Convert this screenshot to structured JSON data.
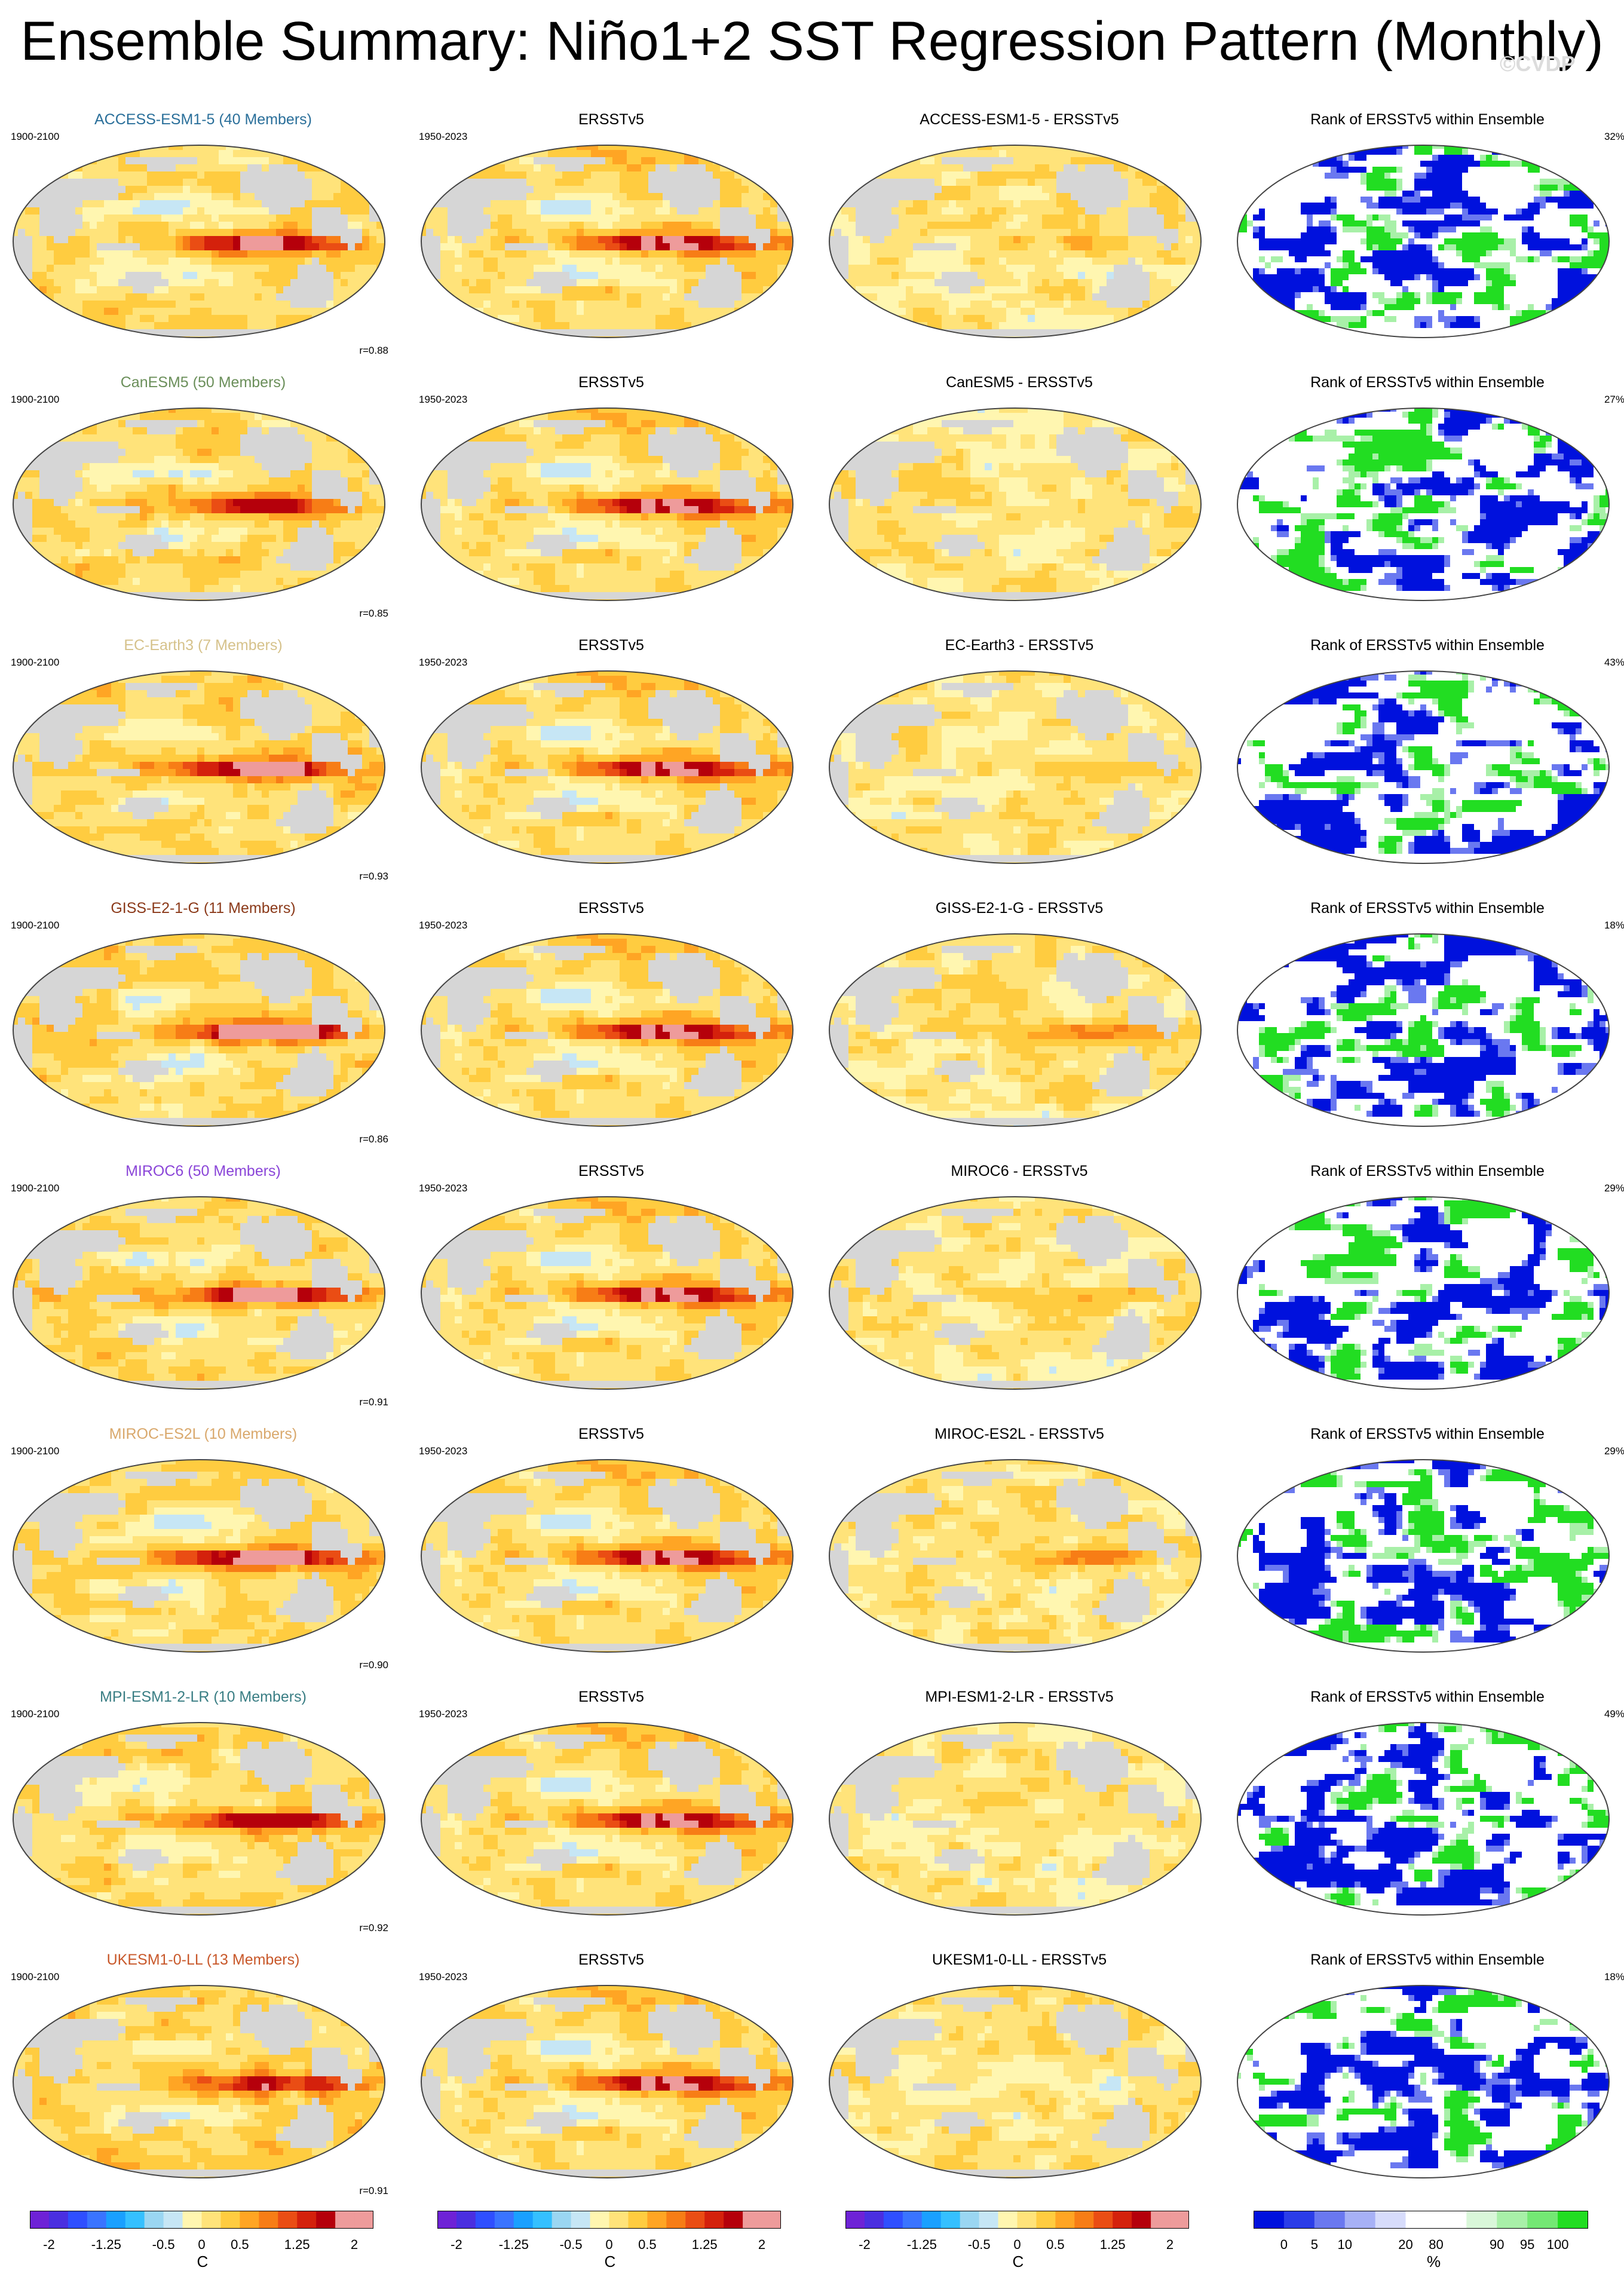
{
  "title": "Ensemble Summary: Niño1+2 SST Regression Pattern (Monthly)",
  "watermark": "©CVDP",
  "chart_data": {
    "type": "heatmap",
    "description_layout": "8 rows x 4 columns of global map panels",
    "colors": {
      "title_model_colors": {
        "ACCESS-ESM1-5": "#2a6f9a",
        "CanESM5": "#6b8f5a",
        "EC-Earth3": "#d6c28b",
        "GISS-E2-1-G": "#8b3a1a",
        "MIROC6": "#8a45d8",
        "MIROC-ES2L": "#d9a86c",
        "MPI-ESM1-2-LR": "#3a7e84",
        "UKESM1-0-LL": "#c8582a"
      },
      "sst_palette": [
        "#6e22d6",
        "#4a2fe0",
        "#2f4fff",
        "#3a74ff",
        "#1aa0ff",
        "#35c0ff",
        "#9ad6f2",
        "#c6e6f5",
        "#fff6b0",
        "#ffe37a",
        "#ffcc40",
        "#ffa524",
        "#f77d16",
        "#ea4d14",
        "#d4210c",
        "#b5000b",
        "#ee9b9b"
      ],
      "rank_palette": [
        "#0011dd",
        "#2b3de8",
        "#6a78f0",
        "#a7b1f6",
        "#d7dcfb",
        "#ffffff",
        "#ffffff",
        "#d9f7d9",
        "#a8f0a8",
        "#74e874",
        "#22dd22"
      ],
      "land": "#d6d6d6",
      "coast": "#6b6b6b"
    },
    "rows": [
      {
        "model": "ACCESS-ESM1-5 (40 Members)",
        "diff_title": "ACCESS-ESM1-5 - ERSSTv5",
        "r": "r=0.88",
        "rank_pct": "32%",
        "model_strength": 0.8,
        "diff_strength": 0.3,
        "diff_sign": 1
      },
      {
        "model": "CanESM5 (50 Members)",
        "diff_title": "CanESM5 - ERSSTv5",
        "r": "r=0.85",
        "rank_pct": "27%",
        "model_strength": 0.65,
        "diff_strength": 0.25,
        "diff_sign": 1
      },
      {
        "model": "EC-Earth3 (7 Members)",
        "diff_title": "EC-Earth3 - ERSSTv5",
        "r": "r=0.93",
        "rank_pct": "43%",
        "model_strength": 0.9,
        "diff_strength": 0.15,
        "diff_sign": 1
      },
      {
        "model": "GISS-E2-1-G (11 Members)",
        "diff_title": "GISS-E2-1-G - ERSSTv5",
        "r": "r=0.86",
        "rank_pct": "18%",
        "model_strength": 1.0,
        "diff_strength": 0.6,
        "diff_sign": 1
      },
      {
        "model": "MIROC6 (50 Members)",
        "diff_title": "MIROC6 - ERSSTv5",
        "r": "r=0.91",
        "rank_pct": "29%",
        "model_strength": 0.95,
        "diff_strength": 0.5,
        "diff_sign": 1
      },
      {
        "model": "MIROC-ES2L (10 Members)",
        "diff_title": "MIROC-ES2L - ERSSTv5",
        "r": "r=0.90",
        "rank_pct": "29%",
        "model_strength": 0.95,
        "diff_strength": 0.45,
        "diff_sign": 1
      },
      {
        "model": "MPI-ESM1-2-LR (10 Members)",
        "diff_title": "MPI-ESM1-2-LR - ERSSTv5",
        "r": "r=0.92",
        "rank_pct": "49%",
        "model_strength": 0.75,
        "diff_strength": 0.2,
        "diff_sign": 1
      },
      {
        "model": "UKESM1-0-LL (13 Members)",
        "diff_title": "UKESM1-0-LL - ERSSTv5",
        "r": "r=0.91",
        "rank_pct": "18%",
        "model_strength": 0.7,
        "diff_strength": 0.25,
        "diff_sign": -1
      }
    ],
    "model_period": "1900-2100",
    "obs_period": "1950-2023",
    "obs_title": "ERSSTv5",
    "rank_title": "Rank of ERSSTv5 within Ensemble",
    "colorbar_sst": {
      "unit": "C",
      "levels": [
        -2.25,
        -2,
        -1.75,
        -1.5,
        -1.25,
        -1,
        -0.75,
        -0.5,
        -0.25,
        0,
        0.25,
        0.5,
        0.75,
        1,
        1.25,
        1.5,
        1.75,
        2,
        2.25
      ],
      "tick_labels": [
        "-2",
        "-1.25",
        "-0.5",
        "0",
        "0.5",
        "1.25",
        "2"
      ],
      "tick_values": [
        -2,
        -1.25,
        -0.5,
        0,
        0.5,
        1.25,
        2
      ]
    },
    "colorbar_rank": {
      "unit": "%",
      "tick_labels": [
        "0",
        "5",
        "10",
        "20",
        "80",
        "90",
        "95",
        "100"
      ]
    }
  }
}
